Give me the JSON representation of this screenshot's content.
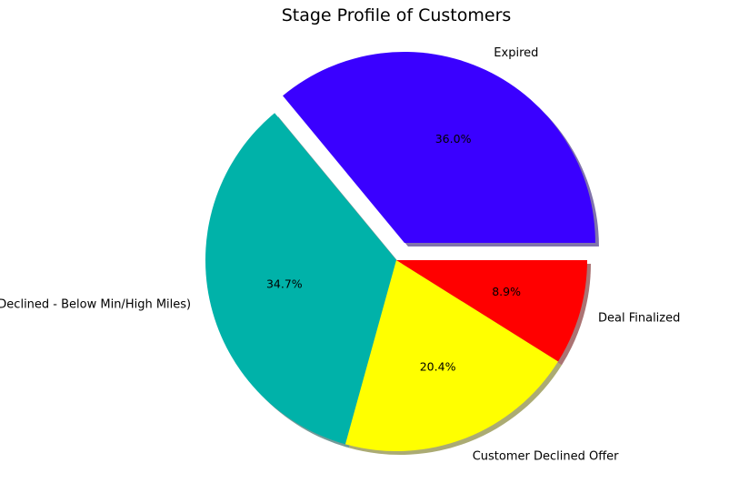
{
  "chart_data": {
    "type": "pie",
    "title": "Stage Profile of Customers",
    "categories": [
      "Expired",
      "Declined - Below Min/High Miles)",
      "Customer Declined Offer",
      "Deal Finalized"
    ],
    "values": [
      36.0,
      34.7,
      20.4,
      8.9
    ],
    "value_labels": [
      "36.0%",
      "34.7%",
      "20.4%",
      "8.9%"
    ],
    "colors": [
      "#3a00ff",
      "#00b2a9",
      "#ffff00",
      "#ff0000"
    ],
    "explode": [
      0.1,
      0,
      0,
      0
    ],
    "shadow": true,
    "start_angle_deg": 0,
    "direction": "counterclockwise",
    "legend": "none"
  }
}
